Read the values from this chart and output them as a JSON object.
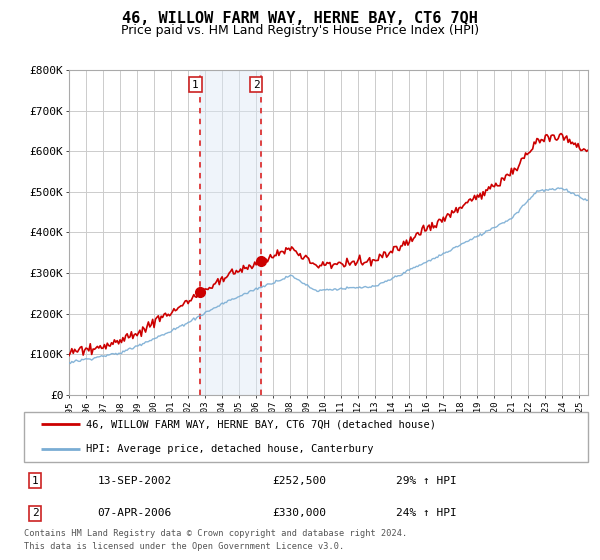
{
  "title": "46, WILLOW FARM WAY, HERNE BAY, CT6 7QH",
  "subtitle": "Price paid vs. HM Land Registry's House Price Index (HPI)",
  "ylim": [
    0,
    800000
  ],
  "yticks": [
    0,
    100000,
    200000,
    300000,
    400000,
    500000,
    600000,
    700000,
    800000
  ],
  "ytick_labels": [
    "£0",
    "£100K",
    "£200K",
    "£300K",
    "£400K",
    "£500K",
    "£600K",
    "£700K",
    "£800K"
  ],
  "xlim_start": 1995.0,
  "xlim_end": 2025.5,
  "red_line_label": "46, WILLOW FARM WAY, HERNE BAY, CT6 7QH (detached house)",
  "blue_line_label": "HPI: Average price, detached house, Canterbury",
  "purchase1_date": 2002.71,
  "purchase1_price": 252500,
  "purchase1_label": "1",
  "purchase1_hpi_pct": "29% ↑ HPI",
  "purchase1_date_str": "13-SEP-2002",
  "purchase2_date": 2006.27,
  "purchase2_price": 330000,
  "purchase2_label": "2",
  "purchase2_hpi_pct": "24% ↑ HPI",
  "purchase2_date_str": "07-APR-2006",
  "footer1": "Contains HM Land Registry data © Crown copyright and database right 2024.",
  "footer2": "This data is licensed under the Open Government Licence v3.0.",
  "bg_color": "#ffffff",
  "plot_bg_color": "#ffffff",
  "grid_color": "#cccccc",
  "red_color": "#cc0000",
  "blue_color": "#7aadd4",
  "shade_color": "#dce8f5",
  "title_fontsize": 11,
  "subtitle_fontsize": 9
}
